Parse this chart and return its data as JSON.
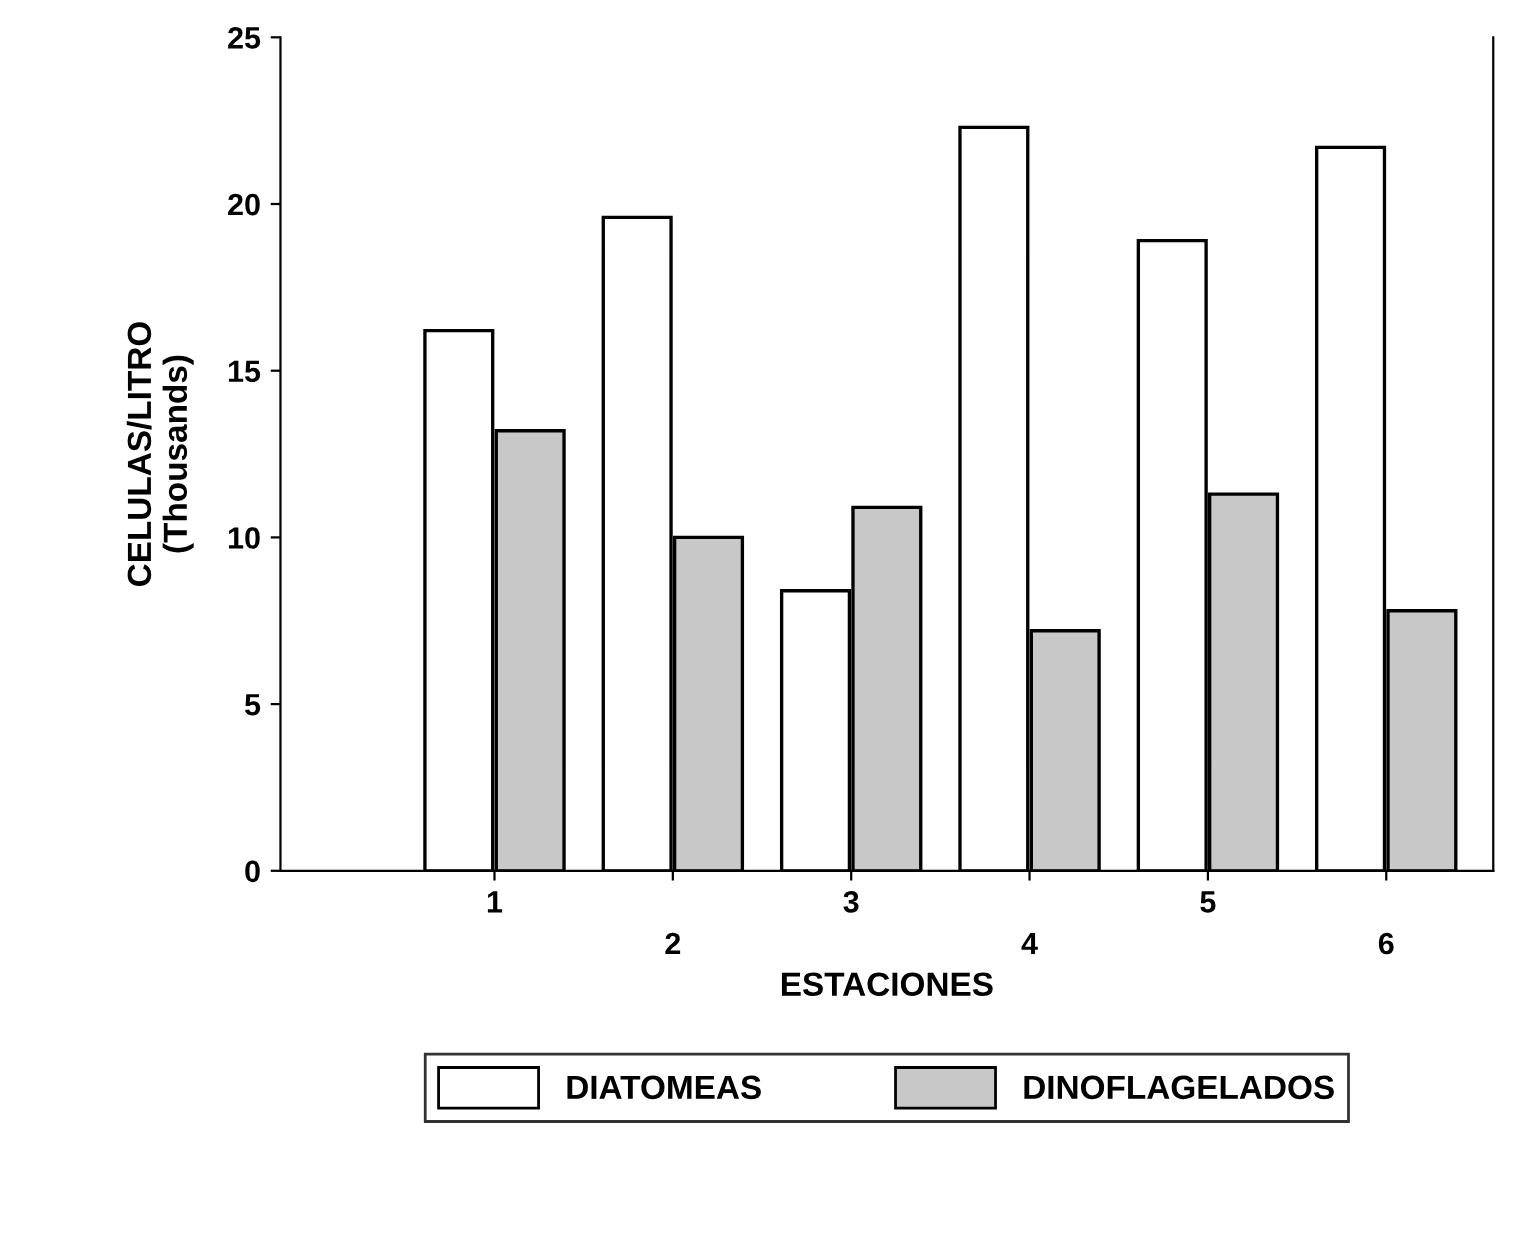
{
  "chart_data": {
    "type": "bar",
    "xlabel": "ESTACIONES",
    "ylabel": "CELULAS/LITRO\n(Thousands)",
    "categories": [
      "1",
      "2",
      "3",
      "4",
      "5",
      "6"
    ],
    "series": [
      {
        "name": "DIATOMEAS",
        "color": "#ffffff",
        "values": [
          16.2,
          19.6,
          8.4,
          22.3,
          18.9,
          21.7
        ]
      },
      {
        "name": "DINOFLAGELADOS",
        "color": "#c8c8c8",
        "values": [
          13.2,
          10.0,
          10.9,
          7.2,
          11.3,
          7.8
        ]
      }
    ],
    "ylim": [
      0,
      25
    ],
    "yticks": [
      0,
      5,
      10,
      15,
      20,
      25
    ],
    "grid": false,
    "legend": "bottom"
  }
}
